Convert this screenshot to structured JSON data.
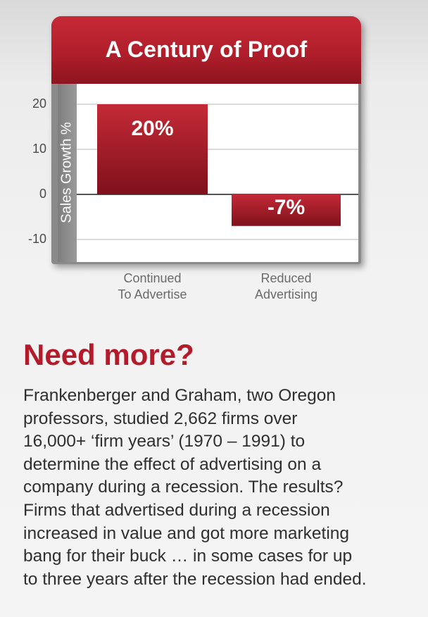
{
  "chart_data": {
    "type": "bar",
    "title": "A Century of Proof",
    "ylabel": "Sales Growth %",
    "xlabel": "",
    "ylim": [
      -15,
      25
    ],
    "yticks": [
      20,
      10,
      0,
      -10
    ],
    "categories": [
      [
        "Continued",
        "To Advertise"
      ],
      [
        "Reduced",
        "Advertising"
      ]
    ],
    "values": [
      20,
      -7
    ],
    "data_labels": [
      "20%",
      "-7%"
    ],
    "bar_color": "#b71f2c",
    "grid": true,
    "legend": "none"
  },
  "heading": "Need more?",
  "body_lines": [
    "Frankenberger and Graham, two Oregon",
    "professors, studied 2,662 firms over",
    "16,000+ ‘firm years’ (1970 – 1991) to",
    "determine the effect of advertising on a",
    "company during a recession. The results?",
    "Firms that advertised during a recession",
    "increased in value and got more marketing",
    "bang for their buck … in some cases for up",
    "to three years after the recession had ended."
  ],
  "colors": {
    "accent_red": "#b31b2b",
    "banner_red": "#c62a36",
    "axis_gray": "#8a8a8a"
  }
}
